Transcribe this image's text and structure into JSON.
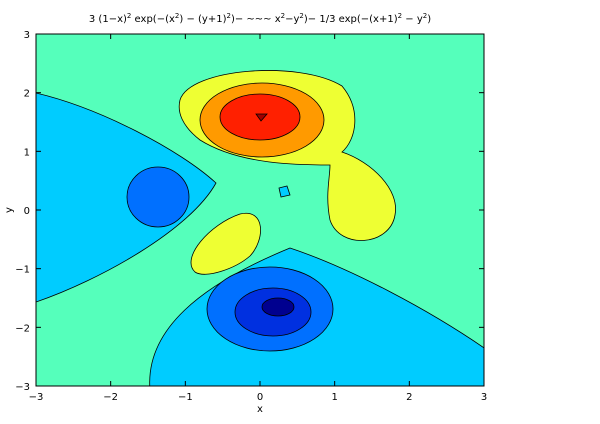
{
  "chart_data": {
    "type": "contour",
    "title_parts": [
      "3 (1−x)",
      "2",
      " exp(−(x",
      "2",
      ") − (y+1)",
      "2",
      ")− ~~~ x",
      "2",
      "−y",
      "2",
      ")− 1/3 exp(−(x+1)",
      "2",
      " − y",
      "2",
      ")"
    ],
    "xlabel": "x",
    "ylabel": "y",
    "xlim": [
      -3,
      3
    ],
    "ylim": [
      -3,
      3
    ],
    "xticks": [
      {
        "value": -3,
        "label": "−3"
      },
      {
        "value": -2,
        "label": "−2"
      },
      {
        "value": -1,
        "label": "−1"
      },
      0,
      1,
      2,
      3
    ],
    "yticks": [
      {
        "value": -3,
        "label": "−3"
      },
      {
        "value": -2,
        "label": "−2"
      },
      {
        "value": -1,
        "label": "−1"
      },
      0,
      1,
      2,
      3
    ],
    "levels": [
      -6,
      -4,
      -2,
      -0.5,
      0.5,
      2,
      4,
      6,
      7.5
    ],
    "colors": [
      "#00008f",
      "#0030e0",
      "#0070ff",
      "#00ccff",
      "#55ffbb",
      "#eeff33",
      "#ff9a00",
      "#ff2000",
      "#a00000"
    ]
  }
}
